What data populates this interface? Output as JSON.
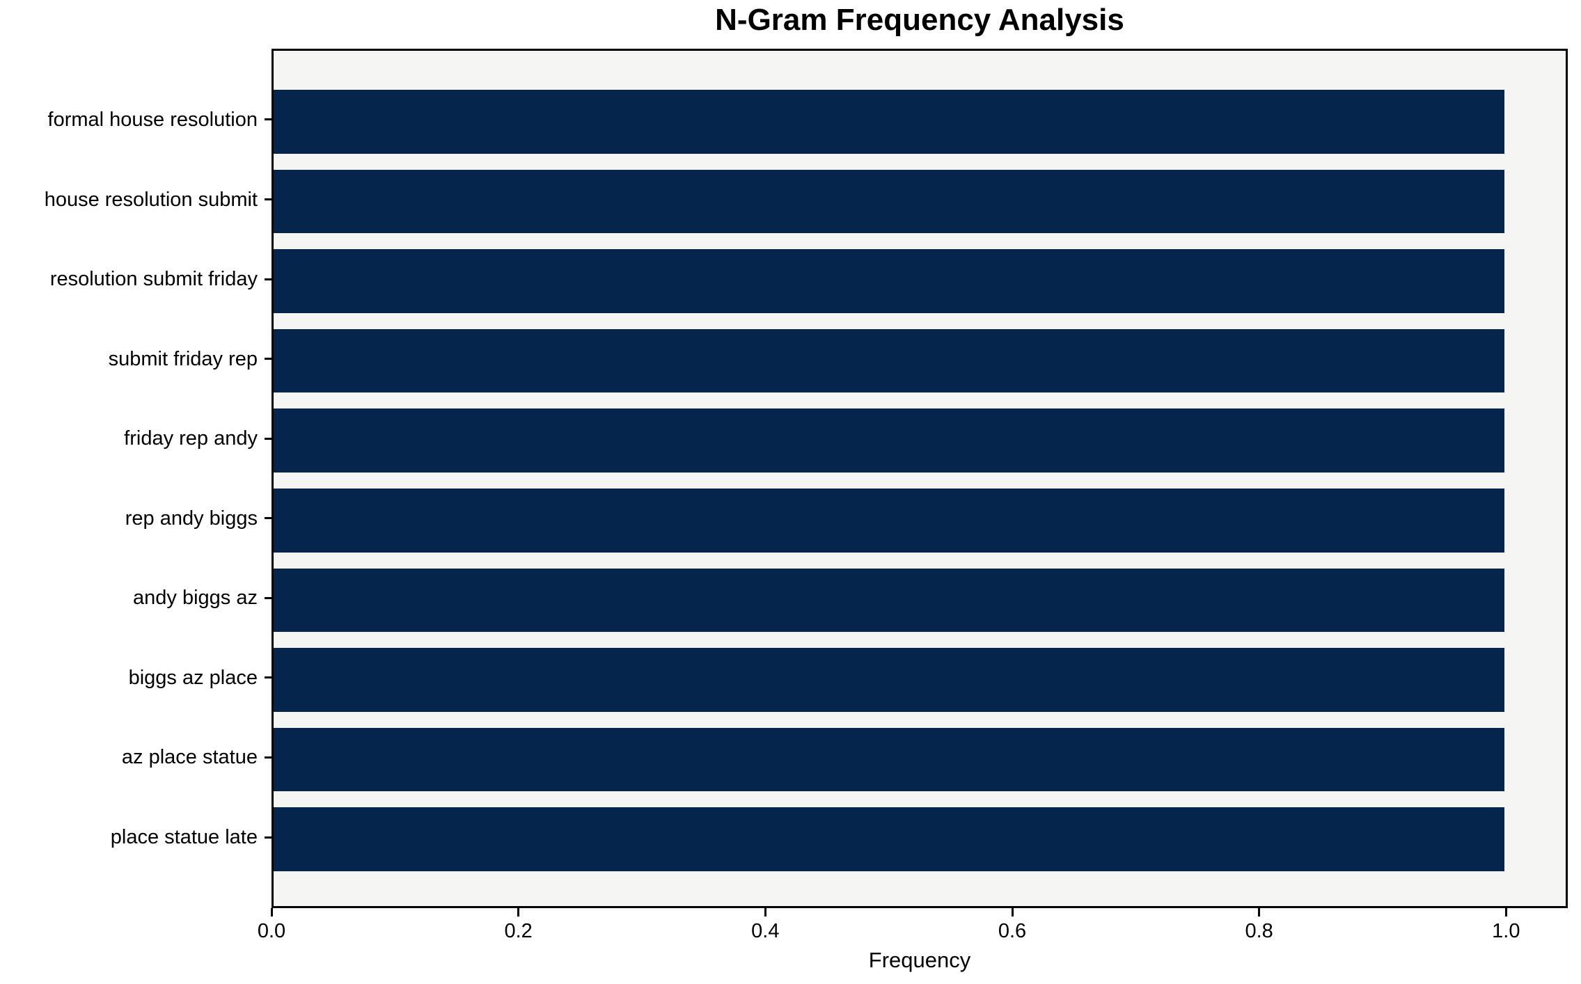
{
  "figure": {
    "background": "#ffffff"
  },
  "chart_data": {
    "type": "bar",
    "orientation": "horizontal",
    "title": "N-Gram Frequency Analysis",
    "xlabel": "Frequency",
    "ylabel": "",
    "categories": [
      "formal house resolution",
      "house resolution submit",
      "resolution submit friday",
      "submit friday rep",
      "friday rep andy",
      "rep andy biggs",
      "andy biggs az",
      "biggs az place",
      "az place statue",
      "place statue late"
    ],
    "values": [
      1.0,
      1.0,
      1.0,
      1.0,
      1.0,
      1.0,
      1.0,
      1.0,
      1.0,
      1.0
    ],
    "xticks": [
      0.0,
      0.2,
      0.4,
      0.6,
      0.8,
      1.0
    ],
    "xtick_labels": [
      "0.0",
      "0.2",
      "0.4",
      "0.6",
      "0.8",
      "1.0"
    ],
    "xlim": [
      0,
      1.05
    ],
    "grid": false,
    "legend": false,
    "bar_color": "#05254d",
    "plot_background": "#f5f5f4",
    "axis_color": "#000000"
  }
}
